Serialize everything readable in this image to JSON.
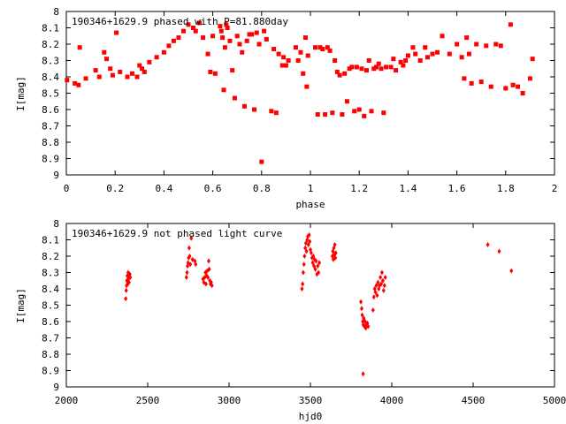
{
  "chart_data": [
    {
      "type": "scatter",
      "title": "190346+1629.9 phased with P=81.880day",
      "xlabel": "phase",
      "ylabel": "I[mag]",
      "xlim": [
        0,
        2
      ],
      "ylim": [
        9,
        8
      ],
      "y_inverted": true,
      "x_ticks": [
        "0",
        "0.2",
        "0.4",
        "0.6",
        "0.8",
        "1",
        "1.2",
        "1.4",
        "1.6",
        "1.8",
        "2"
      ],
      "x_tick_values": [
        0,
        0.2,
        0.4,
        0.6,
        0.8,
        1.0,
        1.2,
        1.4,
        1.6,
        1.8,
        2.0
      ],
      "y_ticks": [
        "8",
        "8.1",
        "8.2",
        "8.3",
        "8.4",
        "8.5",
        "8.6",
        "8.7",
        "8.8",
        "8.9",
        "9"
      ],
      "y_tick_values": [
        8.0,
        8.1,
        8.2,
        8.3,
        8.4,
        8.5,
        8.6,
        8.7,
        8.8,
        8.9,
        9.0
      ],
      "grid": false,
      "marker": "filled-square",
      "color": "#ff0000",
      "points": [
        [
          0.003,
          8.42
        ],
        [
          0.035,
          8.44
        ],
        [
          0.05,
          8.45
        ],
        [
          0.055,
          8.22
        ],
        [
          0.08,
          8.41
        ],
        [
          0.12,
          8.36
        ],
        [
          0.135,
          8.4
        ],
        [
          0.155,
          8.25
        ],
        [
          0.165,
          8.29
        ],
        [
          0.18,
          8.35
        ],
        [
          0.19,
          8.39
        ],
        [
          0.205,
          8.13
        ],
        [
          0.22,
          8.37
        ],
        [
          0.25,
          8.4
        ],
        [
          0.27,
          8.38
        ],
        [
          0.29,
          8.4
        ],
        [
          0.3,
          8.33
        ],
        [
          0.31,
          8.35
        ],
        [
          0.32,
          8.37
        ],
        [
          0.34,
          8.31
        ],
        [
          0.37,
          8.28
        ],
        [
          0.4,
          8.25
        ],
        [
          0.42,
          8.21
        ],
        [
          0.44,
          8.18
        ],
        [
          0.46,
          8.16
        ],
        [
          0.48,
          8.12
        ],
        [
          0.5,
          8.08
        ],
        [
          0.52,
          8.1
        ],
        [
          0.53,
          8.12
        ],
        [
          0.545,
          8.07
        ],
        [
          0.56,
          8.16
        ],
        [
          0.58,
          8.26
        ],
        [
          0.59,
          8.37
        ],
        [
          0.6,
          8.15
        ],
        [
          0.61,
          8.38
        ],
        [
          0.63,
          8.09
        ],
        [
          0.635,
          8.12
        ],
        [
          0.64,
          8.16
        ],
        [
          0.645,
          8.48
        ],
        [
          0.65,
          8.22
        ],
        [
          0.655,
          8.08
        ],
        [
          0.66,
          8.1
        ],
        [
          0.67,
          8.18
        ],
        [
          0.68,
          8.36
        ],
        [
          0.69,
          8.53
        ],
        [
          0.7,
          8.15
        ],
        [
          0.71,
          8.2
        ],
        [
          0.72,
          8.25
        ],
        [
          0.73,
          8.58
        ],
        [
          0.74,
          8.18
        ],
        [
          0.75,
          8.14
        ],
        [
          0.76,
          8.14
        ],
        [
          0.77,
          8.6
        ],
        [
          0.78,
          8.13
        ],
        [
          0.79,
          8.2
        ],
        [
          0.8,
          8.92
        ],
        [
          0.81,
          8.12
        ],
        [
          0.82,
          8.17
        ],
        [
          0.84,
          8.61
        ],
        [
          0.85,
          8.23
        ],
        [
          0.86,
          8.62
        ],
        [
          0.87,
          8.26
        ],
        [
          0.885,
          8.33
        ],
        [
          0.89,
          8.28
        ],
        [
          0.9,
          8.33
        ],
        [
          0.91,
          8.3
        ],
        [
          0.94,
          8.22
        ],
        [
          0.95,
          8.3
        ],
        [
          0.96,
          8.25
        ],
        [
          0.97,
          8.38
        ],
        [
          0.98,
          8.16
        ],
        [
          0.985,
          8.46
        ],
        [
          0.99,
          8.27
        ],
        [
          1.02,
          8.22
        ],
        [
          1.03,
          8.63
        ],
        [
          1.04,
          8.22
        ],
        [
          1.05,
          8.23
        ],
        [
          1.06,
          8.63
        ],
        [
          1.07,
          8.22
        ],
        [
          1.08,
          8.24
        ],
        [
          1.09,
          8.62
        ],
        [
          1.1,
          8.3
        ],
        [
          1.11,
          8.37
        ],
        [
          1.12,
          8.39
        ],
        [
          1.13,
          8.63
        ],
        [
          1.14,
          8.38
        ],
        [
          1.15,
          8.55
        ],
        [
          1.16,
          8.35
        ],
        [
          1.17,
          8.34
        ],
        [
          1.18,
          8.61
        ],
        [
          1.19,
          8.34
        ],
        [
          1.2,
          8.6
        ],
        [
          1.21,
          8.35
        ],
        [
          1.22,
          8.64
        ],
        [
          1.23,
          8.36
        ],
        [
          1.24,
          8.3
        ],
        [
          1.25,
          8.61
        ],
        [
          1.26,
          8.35
        ],
        [
          1.27,
          8.34
        ],
        [
          1.28,
          8.32
        ],
        [
          1.29,
          8.35
        ],
        [
          1.3,
          8.62
        ],
        [
          1.31,
          8.34
        ],
        [
          1.33,
          8.34
        ],
        [
          1.34,
          8.29
        ],
        [
          1.35,
          8.36
        ],
        [
          1.37,
          8.31
        ],
        [
          1.38,
          8.33
        ],
        [
          1.39,
          8.3
        ],
        [
          1.4,
          8.27
        ],
        [
          1.42,
          8.22
        ],
        [
          1.43,
          8.26
        ],
        [
          1.45,
          8.3
        ],
        [
          1.47,
          8.22
        ],
        [
          1.48,
          8.28
        ],
        [
          1.5,
          8.26
        ],
        [
          1.52,
          8.25
        ],
        [
          1.54,
          8.15
        ],
        [
          1.57,
          8.26
        ],
        [
          1.6,
          8.2
        ],
        [
          1.62,
          8.28
        ],
        [
          1.63,
          8.41
        ],
        [
          1.64,
          8.16
        ],
        [
          1.65,
          8.26
        ],
        [
          1.66,
          8.44
        ],
        [
          1.68,
          8.2
        ],
        [
          1.7,
          8.43
        ],
        [
          1.72,
          8.21
        ],
        [
          1.74,
          8.46
        ],
        [
          1.76,
          8.2
        ],
        [
          1.78,
          8.21
        ],
        [
          1.8,
          8.47
        ],
        [
          1.82,
          8.08
        ],
        [
          1.83,
          8.45
        ],
        [
          1.85,
          8.46
        ],
        [
          1.87,
          8.5
        ],
        [
          1.9,
          8.41
        ],
        [
          1.91,
          8.29
        ]
      ]
    },
    {
      "type": "scatter",
      "title": "190346+1629.9 not phased light curve",
      "xlabel": "hjd0",
      "ylabel": "I[mag]",
      "xlim": [
        2000,
        5000
      ],
      "ylim": [
        9,
        8
      ],
      "y_inverted": true,
      "x_ticks": [
        "2000",
        "2500",
        "3000",
        "3500",
        "4000",
        "4500",
        "5000"
      ],
      "x_tick_values": [
        2000,
        2500,
        3000,
        3500,
        4000,
        4500,
        5000
      ],
      "y_ticks": [
        "8",
        "8.1",
        "8.2",
        "8.3",
        "8.4",
        "8.5",
        "8.6",
        "8.7",
        "8.8",
        "8.9",
        "9"
      ],
      "y_tick_values": [
        8.0,
        8.1,
        8.2,
        8.3,
        8.4,
        8.5,
        8.6,
        8.7,
        8.8,
        8.9,
        9.0
      ],
      "grid": false,
      "marker": "filled-diamond",
      "color": "#ff0000",
      "points": [
        [
          2365,
          8.46
        ],
        [
          2368,
          8.41
        ],
        [
          2370,
          8.38
        ],
        [
          2372,
          8.35
        ],
        [
          2375,
          8.32
        ],
        [
          2378,
          8.37
        ],
        [
          2380,
          8.3
        ],
        [
          2382,
          8.34
        ],
        [
          2385,
          8.36
        ],
        [
          2388,
          8.32
        ],
        [
          2390,
          8.31
        ],
        [
          2393,
          8.33
        ],
        [
          2738,
          8.33
        ],
        [
          2742,
          8.3
        ],
        [
          2745,
          8.26
        ],
        [
          2748,
          8.24
        ],
        [
          2752,
          8.21
        ],
        [
          2755,
          8.15
        ],
        [
          2758,
          8.2
        ],
        [
          2762,
          8.25
        ],
        [
          2768,
          8.09
        ],
        [
          2775,
          8.22
        ],
        [
          2790,
          8.23
        ],
        [
          2795,
          8.25
        ],
        [
          2840,
          8.34
        ],
        [
          2845,
          8.36
        ],
        [
          2850,
          8.33
        ],
        [
          2855,
          8.3
        ],
        [
          2858,
          8.37
        ],
        [
          2862,
          8.32
        ],
        [
          2866,
          8.29
        ],
        [
          2870,
          8.33
        ],
        [
          2875,
          8.23
        ],
        [
          2878,
          8.28
        ],
        [
          2882,
          8.35
        ],
        [
          2886,
          8.37
        ],
        [
          2890,
          8.36
        ],
        [
          2895,
          8.38
        ],
        [
          3448,
          8.4
        ],
        [
          3452,
          8.37
        ],
        [
          3456,
          8.3
        ],
        [
          3460,
          8.25
        ],
        [
          3464,
          8.2
        ],
        [
          3468,
          8.15
        ],
        [
          3472,
          8.12
        ],
        [
          3476,
          8.17
        ],
        [
          3480,
          8.1
        ],
        [
          3484,
          8.08
        ],
        [
          3488,
          8.13
        ],
        [
          3492,
          8.07
        ],
        [
          3496,
          8.11
        ],
        [
          3500,
          8.16
        ],
        [
          3505,
          8.18
        ],
        [
          3510,
          8.21
        ],
        [
          3514,
          8.24
        ],
        [
          3518,
          8.2
        ],
        [
          3522,
          8.26
        ],
        [
          3526,
          8.22
        ],
        [
          3530,
          8.28
        ],
        [
          3535,
          8.23
        ],
        [
          3540,
          8.31
        ],
        [
          3545,
          8.26
        ],
        [
          3550,
          8.3
        ],
        [
          3555,
          8.24
        ],
        [
          3635,
          8.2
        ],
        [
          3638,
          8.17
        ],
        [
          3641,
          8.22
        ],
        [
          3644,
          8.15
        ],
        [
          3647,
          8.19
        ],
        [
          3650,
          8.13
        ],
        [
          3653,
          8.21
        ],
        [
          3656,
          8.18
        ],
        [
          3810,
          8.48
        ],
        [
          3815,
          8.52
        ],
        [
          3818,
          8.56
        ],
        [
          3822,
          8.6
        ],
        [
          3825,
          8.62
        ],
        [
          3828,
          8.58
        ],
        [
          3832,
          8.63
        ],
        [
          3836,
          8.6
        ],
        [
          3840,
          8.64
        ],
        [
          3845,
          8.62
        ],
        [
          3850,
          8.61
        ],
        [
          3855,
          8.63
        ],
        [
          3824,
          8.92
        ],
        [
          3885,
          8.53
        ],
        [
          3890,
          8.45
        ],
        [
          3895,
          8.4
        ],
        [
          3900,
          8.42
        ],
        [
          3905,
          8.38
        ],
        [
          3910,
          8.44
        ],
        [
          3915,
          8.36
        ],
        [
          3920,
          8.4
        ],
        [
          3925,
          8.38
        ],
        [
          3930,
          8.33
        ],
        [
          3935,
          8.37
        ],
        [
          3940,
          8.3
        ],
        [
          3945,
          8.35
        ],
        [
          3950,
          8.41
        ],
        [
          3955,
          8.38
        ],
        [
          3960,
          8.33
        ],
        [
          4590,
          8.13
        ],
        [
          4660,
          8.17
        ],
        [
          4735,
          8.29
        ]
      ]
    }
  ]
}
